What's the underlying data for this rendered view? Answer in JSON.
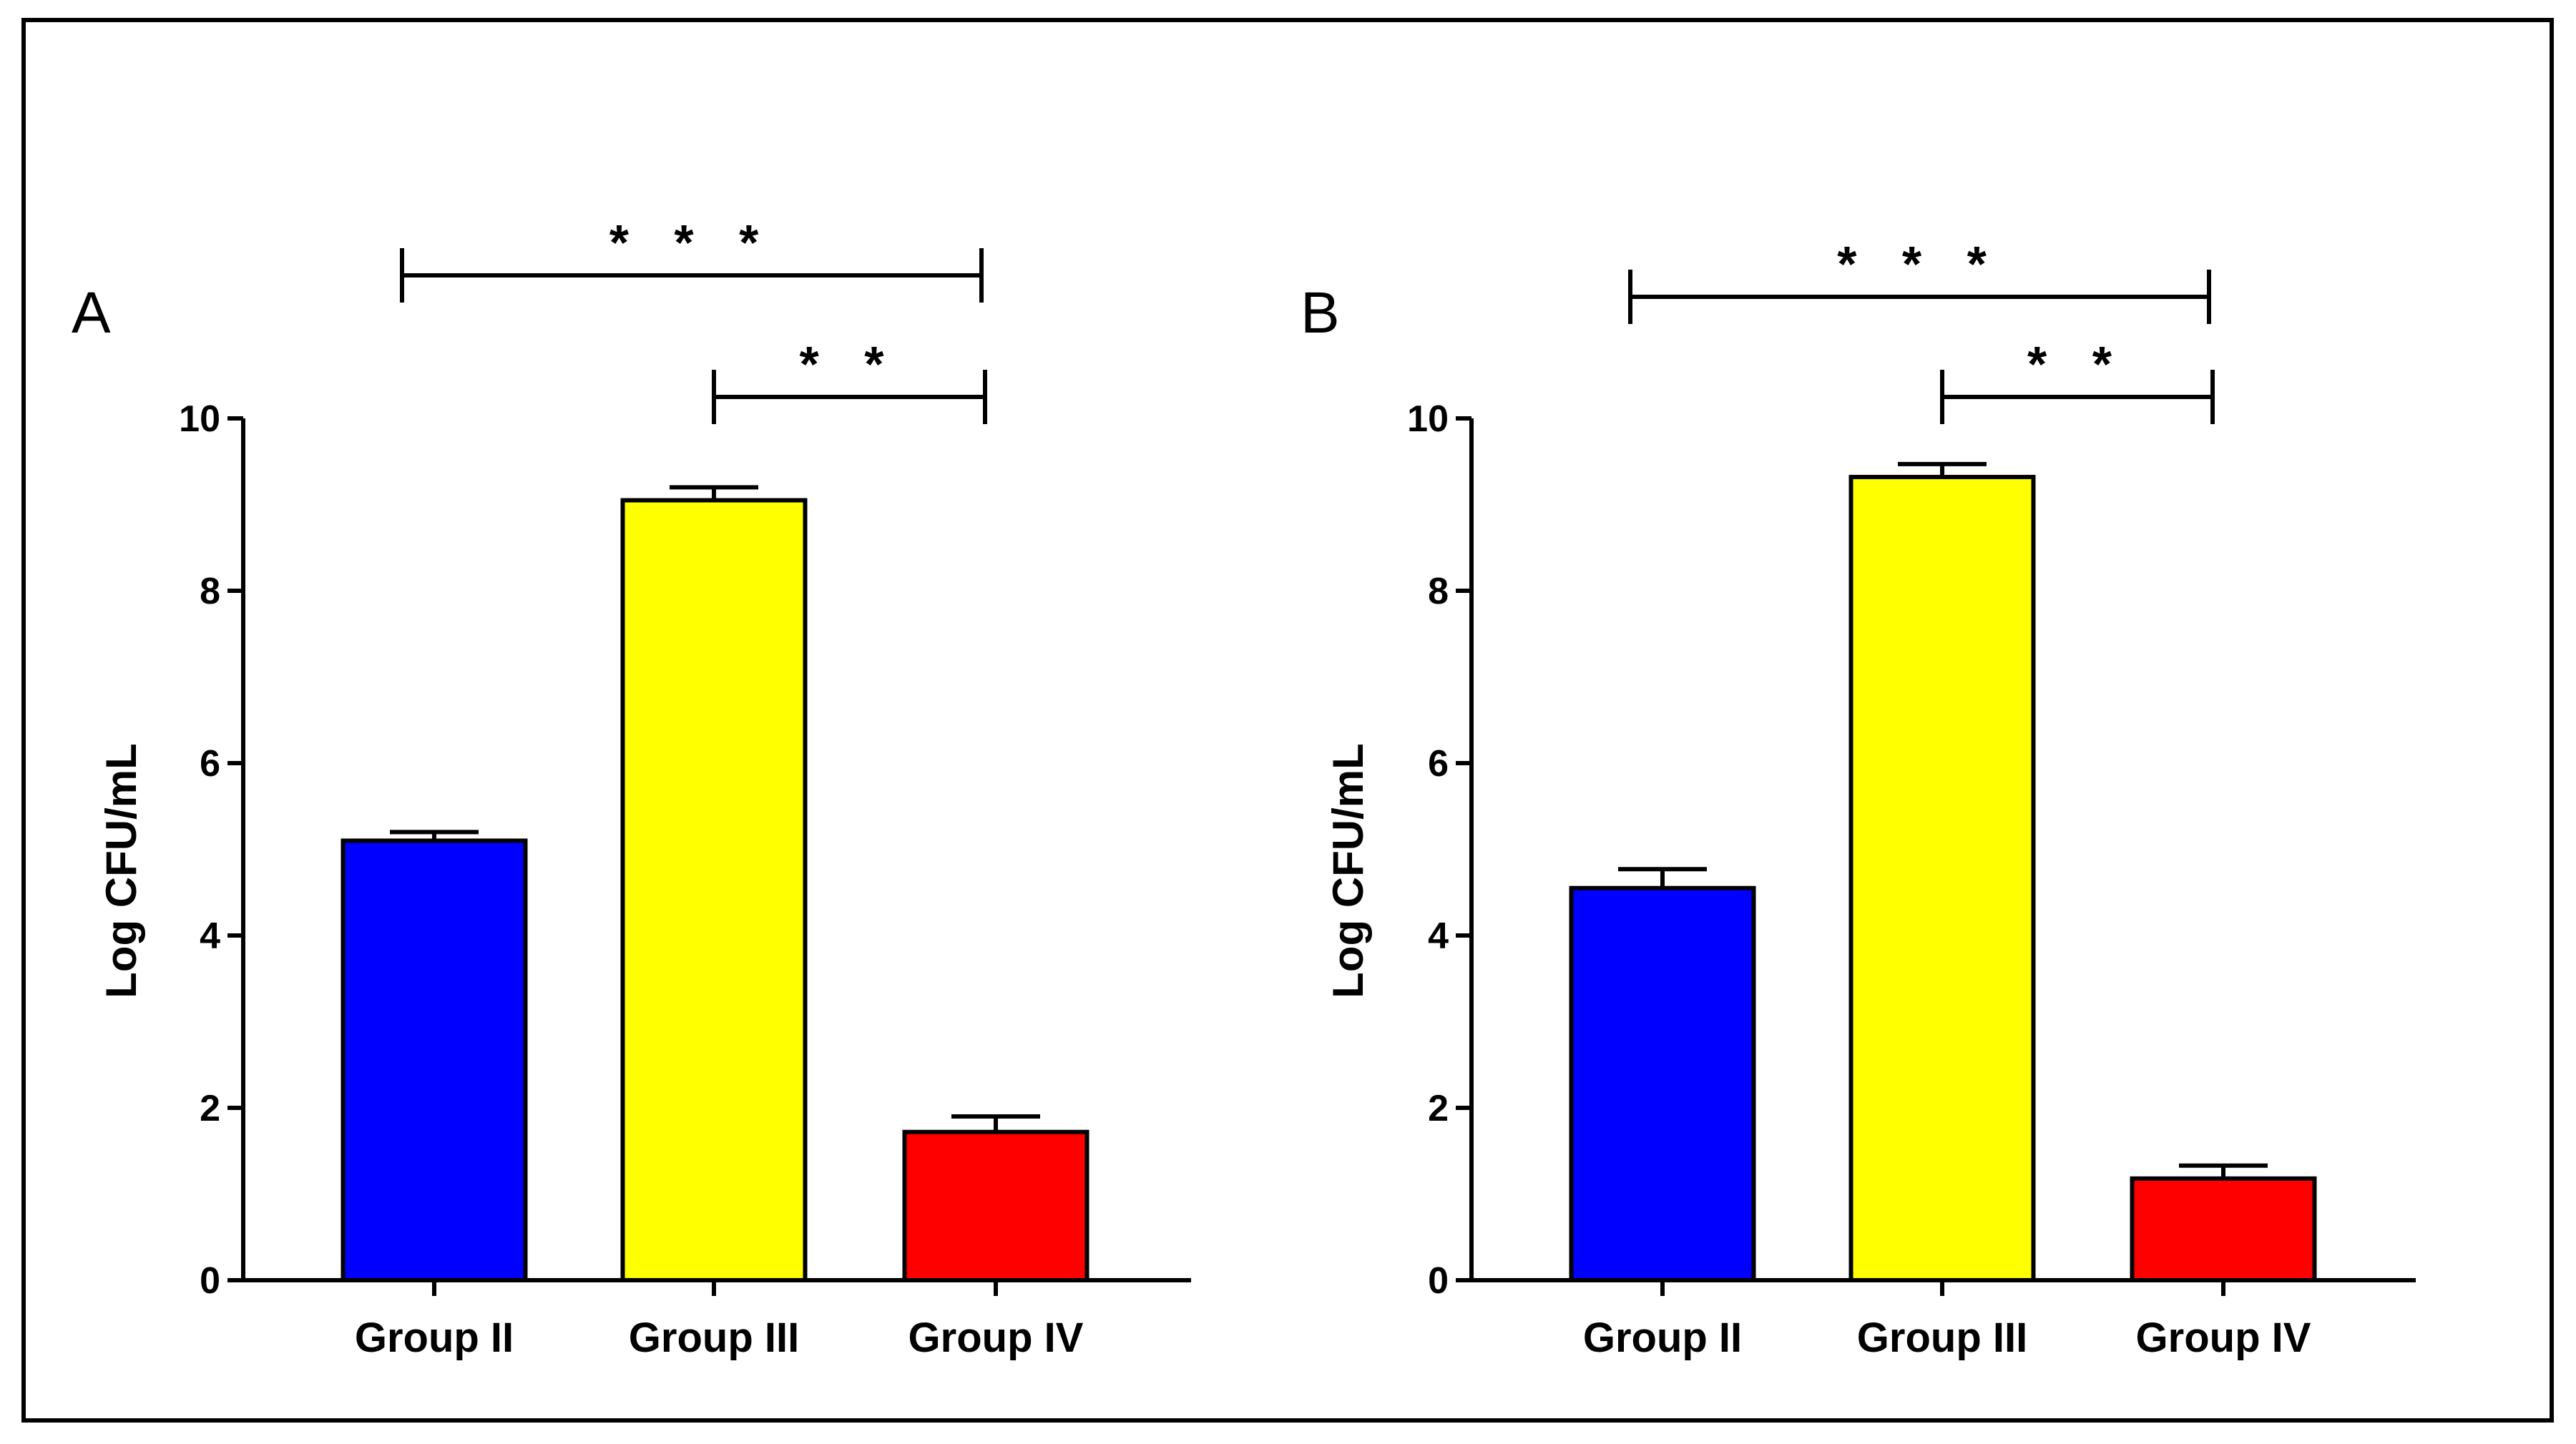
{
  "chart_data": [
    {
      "type": "bar",
      "panel_label": "A",
      "categories": [
        "Group II",
        "Group III",
        "Group IV"
      ],
      "values": [
        5.1,
        9.05,
        1.72
      ],
      "errors": [
        0.1,
        0.15,
        0.18
      ],
      "colors": [
        "#0000ff",
        "#ffff00",
        "#ff0000"
      ],
      "ylabel": "Log CFU/mL",
      "xlabel": "",
      "ylim": [
        0,
        10
      ],
      "yticks": [
        0,
        2,
        4,
        6,
        8,
        10
      ],
      "significance": [
        {
          "from": 0,
          "to": 2,
          "label": "* * *",
          "level": 2
        },
        {
          "from": 1,
          "to": 2,
          "label": "* *",
          "level": 1
        }
      ]
    },
    {
      "type": "bar",
      "panel_label": "B",
      "categories": [
        "Group II",
        "Group III",
        "Group IV"
      ],
      "values": [
        4.55,
        9.32,
        1.18
      ],
      "errors": [
        0.22,
        0.15,
        0.15
      ],
      "colors": [
        "#0000ff",
        "#ffff00",
        "#ff0000"
      ],
      "ylabel": "Log CFU/mL",
      "xlabel": "",
      "ylim": [
        0,
        10
      ],
      "yticks": [
        0,
        2,
        4,
        6,
        8,
        10
      ],
      "significance": [
        {
          "from": 0,
          "to": 2,
          "label": "* * *",
          "level": 2
        },
        {
          "from": 1,
          "to": 2,
          "label": "* *",
          "level": 1
        }
      ]
    }
  ]
}
